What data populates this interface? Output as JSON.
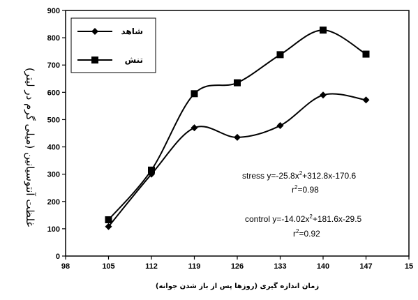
{
  "chart_data": {
    "type": "line",
    "x": [
      105,
      112,
      119,
      126,
      133,
      140,
      147
    ],
    "series": [
      {
        "name": "شاهد",
        "marker": "diamond",
        "color": "#000000",
        "values": [
          108,
          300,
          470,
          435,
          478,
          590,
          572
        ]
      },
      {
        "name": "تنش",
        "marker": "square",
        "color": "#000000",
        "values": [
          133,
          315,
          595,
          635,
          738,
          828,
          740
        ]
      }
    ],
    "xlabel": "زمان اندازه گیری (روزها پس از باز شدن جوانه)",
    "ylabel": "غلظت آنتوسیانین (میلی گرم در لیتر)",
    "xticks": [
      "98",
      "105",
      "112",
      "119",
      "126",
      "133",
      "140",
      "147",
      "15"
    ],
    "yticks": [
      0,
      100,
      200,
      300,
      400,
      500,
      600,
      700,
      800,
      900
    ],
    "xlim": [
      98,
      154
    ],
    "ylim": [
      0,
      900
    ],
    "legend_position": "top-left",
    "annotations": {
      "stress_eq": "stress y=-25.8x",
      "stress_exp": "2",
      "stress_rest": "+312.8x-170.6",
      "stress_r_base": "r",
      "stress_r_exp": "2",
      "stress_r_val": "=0.98",
      "control_eq": "control y=-14.02x",
      "control_exp": "2",
      "control_rest": "+181.6x-29.5",
      "control_r_base": "r",
      "control_r_exp": "2",
      "control_r_val": "=0.92"
    }
  }
}
